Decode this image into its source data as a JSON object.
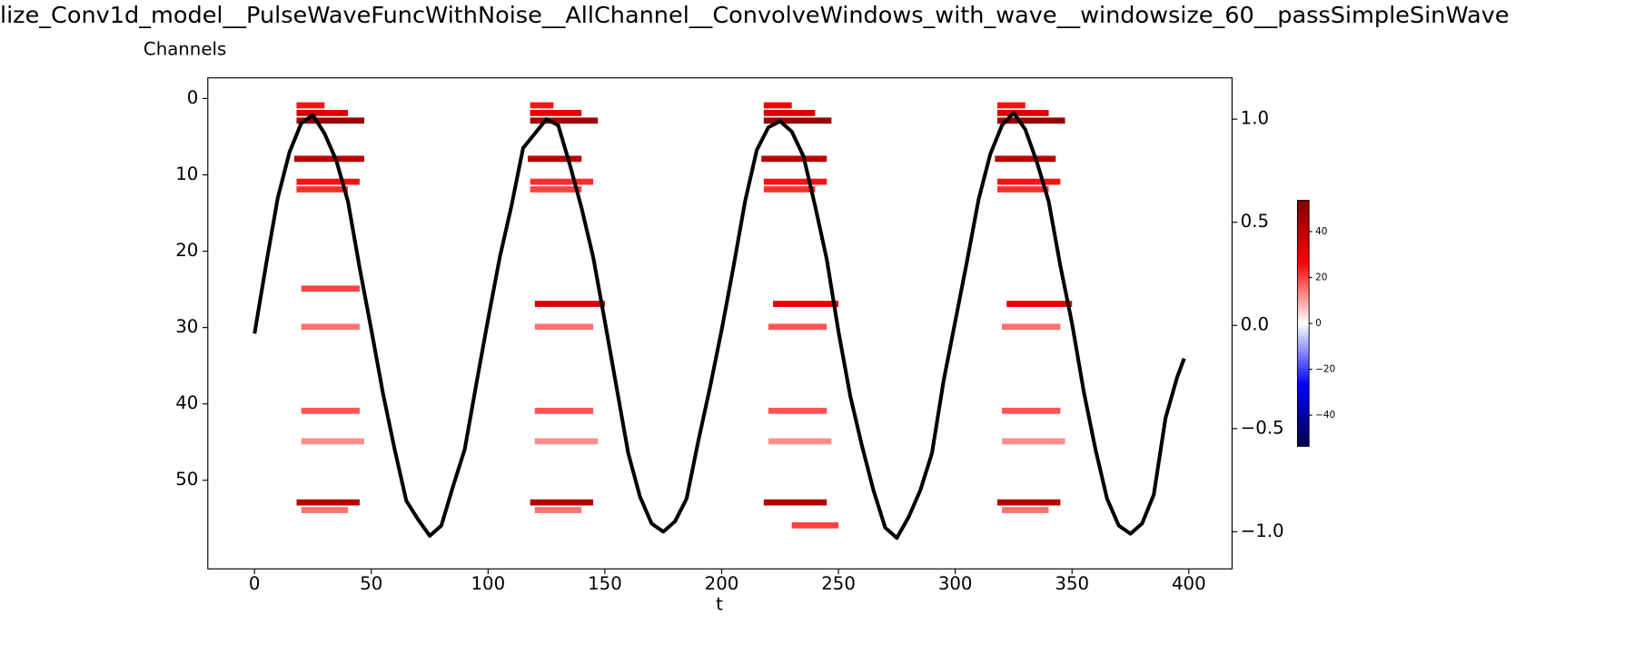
{
  "chart_data": {
    "type": "heatmap-line",
    "title": "lize_Conv1d_model__PulseWaveFuncWithNoise__AllChannel__ConvolveWindows_with_wave__windowsize_60__passSimpleSinWave",
    "ylabel": "Channels",
    "xlabel": "t",
    "xlim": [
      -20,
      418.5
    ],
    "xticks": [
      0,
      50,
      100,
      150,
      200,
      250,
      300,
      350,
      400
    ],
    "ylim": [
      61.6,
      -2.7
    ],
    "yticks": [
      0,
      10,
      20,
      30,
      40,
      50
    ],
    "y2lim": [
      -1.18,
      1.2
    ],
    "y2ticks": [
      {
        "value": -1,
        "label": "−1.0"
      },
      {
        "value": -0.5,
        "label": "−0.5"
      },
      {
        "value": 0,
        "label": "0.0"
      },
      {
        "value": 0.5,
        "label": "0.5"
      },
      {
        "value": 1,
        "label": "1.0"
      }
    ],
    "clim": [
      -53.6,
      53.6
    ],
    "cticks": [
      {
        "value": -40,
        "label": "−40"
      },
      {
        "value": -20,
        "label": "−20"
      },
      0,
      20,
      40
    ],
    "stripes": [
      [
        1,
        18,
        30,
        25
      ],
      [
        2,
        18,
        40,
        35
      ],
      [
        3,
        18,
        47,
        48
      ],
      [
        8,
        17,
        47,
        42
      ],
      [
        11,
        18,
        45,
        25
      ],
      [
        12,
        18,
        40,
        22
      ],
      [
        25,
        20,
        45,
        20
      ],
      [
        30,
        20,
        45,
        15
      ],
      [
        41,
        20,
        45,
        18
      ],
      [
        45,
        20,
        47,
        12
      ],
      [
        53,
        18,
        45,
        42
      ],
      [
        54,
        20,
        40,
        15
      ],
      [
        1,
        118,
        128,
        25
      ],
      [
        2,
        118,
        140,
        32
      ],
      [
        3,
        118,
        147,
        46
      ],
      [
        8,
        117,
        140,
        42
      ],
      [
        11,
        118,
        145,
        22
      ],
      [
        12,
        118,
        140,
        20
      ],
      [
        27,
        120,
        150,
        35
      ],
      [
        30,
        120,
        145,
        15
      ],
      [
        41,
        120,
        145,
        18
      ],
      [
        45,
        120,
        147,
        12
      ],
      [
        53,
        118,
        145,
        42
      ],
      [
        54,
        120,
        140,
        15
      ],
      [
        1,
        218,
        230,
        28
      ],
      [
        2,
        218,
        240,
        35
      ],
      [
        3,
        218,
        247,
        48
      ],
      [
        8,
        217,
        245,
        42
      ],
      [
        11,
        218,
        245,
        25
      ],
      [
        12,
        218,
        240,
        22
      ],
      [
        27,
        222,
        250,
        33
      ],
      [
        30,
        220,
        245,
        18
      ],
      [
        41,
        220,
        245,
        18
      ],
      [
        45,
        220,
        247,
        12
      ],
      [
        53,
        218,
        245,
        42
      ],
      [
        56,
        230,
        250,
        20
      ],
      [
        1,
        318,
        330,
        25
      ],
      [
        2,
        318,
        340,
        35
      ],
      [
        3,
        318,
        347,
        48
      ],
      [
        8,
        317,
        343,
        42
      ],
      [
        11,
        318,
        345,
        25
      ],
      [
        12,
        318,
        340,
        22
      ],
      [
        27,
        322,
        350,
        33
      ],
      [
        30,
        320,
        345,
        15
      ],
      [
        41,
        320,
        345,
        18
      ],
      [
        45,
        320,
        347,
        12
      ],
      [
        53,
        318,
        345,
        42
      ],
      [
        54,
        320,
        340,
        15
      ]
    ],
    "line": {
      "color": "#000000",
      "axis": "y2",
      "x": [
        0,
        5,
        10,
        15,
        20,
        25,
        30,
        35,
        40,
        45,
        50,
        55,
        60,
        65,
        70,
        75,
        80,
        85,
        90,
        95,
        100,
        105,
        110,
        115,
        120,
        125,
        130,
        135,
        140,
        145,
        150,
        155,
        160,
        165,
        170,
        175,
        180,
        185,
        190,
        195,
        200,
        205,
        210,
        215,
        220,
        225,
        230,
        235,
        240,
        245,
        250,
        255,
        260,
        265,
        270,
        275,
        280,
        285,
        290,
        295,
        300,
        305,
        310,
        315,
        320,
        325,
        330,
        335,
        340,
        345,
        350,
        355,
        360,
        365,
        370,
        375,
        380,
        385,
        390,
        395,
        398
      ],
      "values": [
        -0.04,
        0.3,
        0.62,
        0.84,
        0.98,
        1.02,
        0.93,
        0.8,
        0.6,
        0.28,
        -0.02,
        -0.33,
        -0.6,
        -0.85,
        -0.94,
        -1.02,
        -0.97,
        -0.78,
        -0.6,
        -0.28,
        0.03,
        0.33,
        0.58,
        0.86,
        0.93,
        1.0,
        0.97,
        0.78,
        0.57,
        0.33,
        0.02,
        -0.3,
        -0.62,
        -0.83,
        -0.96,
        -1.0,
        -0.95,
        -0.84,
        -0.56,
        -0.3,
        -0.02,
        0.28,
        0.6,
        0.85,
        0.96,
        0.99,
        0.94,
        0.82,
        0.58,
        0.32,
        -0.03,
        -0.34,
        -0.58,
        -0.8,
        -0.98,
        -1.03,
        -0.93,
        -0.8,
        -0.62,
        -0.27,
        0.02,
        0.31,
        0.61,
        0.83,
        0.97,
        1.03,
        0.95,
        0.79,
        0.6,
        0.29,
        0.01,
        -0.32,
        -0.6,
        -0.84,
        -0.97,
        -1.01,
        -0.96,
        -0.82,
        -0.45,
        -0.25,
        -0.16
      ]
    }
  }
}
